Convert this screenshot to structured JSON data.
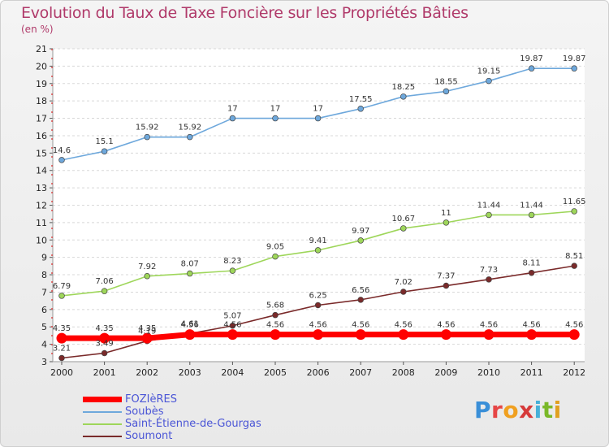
{
  "header": {
    "title": "Evolution du Taux de Taxe Foncière sur les Propriétés Bâties",
    "subtitle": "(en %)"
  },
  "logo": {
    "text": "Proxiti",
    "letter_colors": [
      "#3a8fd8",
      "#e64646",
      "#f0a020",
      "#d63a3a",
      "#46b0d8",
      "#7ab828",
      "#e0a020"
    ]
  },
  "chart_data": {
    "type": "line",
    "title": "Evolution du Taux de Taxe Foncière sur les Propriétés Bâties",
    "subtitle": "(en %)",
    "xlabel": "",
    "ylabel": "",
    "x": [
      "2000",
      "2001",
      "2002",
      "2003",
      "2004",
      "2005",
      "2006",
      "2007",
      "2008",
      "2009",
      "2010",
      "2011",
      "2012"
    ],
    "ylim": [
      3,
      21
    ],
    "yticks": [
      "3",
      "4",
      "5",
      "6",
      "7",
      "8",
      "9",
      "10",
      "11",
      "12",
      "13",
      "14",
      "15",
      "16",
      "17",
      "18",
      "19",
      "20",
      "21"
    ],
    "grid": "horizontal dashed",
    "legend_position": "bottom-left",
    "series": [
      {
        "name": "FOZIèRES",
        "color": "#ff0000",
        "values": [
          4.35,
          4.35,
          4.35,
          4.56,
          4.56,
          4.56,
          4.56,
          4.56,
          4.56,
          4.56,
          4.56,
          4.56,
          4.56
        ],
        "labels": [
          "4.35",
          "4.35",
          "4.35",
          "4.56",
          "4.56",
          "4.56",
          "4.56",
          "4.56",
          "4.56",
          "4.56",
          "4.56",
          "4.56",
          "4.56"
        ]
      },
      {
        "name": "Soubès",
        "color": "#6ea8dc",
        "values": [
          14.6,
          15.1,
          15.92,
          15.92,
          17,
          17,
          17,
          17.55,
          18.25,
          18.55,
          19.15,
          19.87,
          19.87
        ],
        "labels": [
          "14.6",
          "15.1",
          "15.92",
          "15.92",
          "17",
          "17",
          "17",
          "17.55",
          "18.25",
          "18.55",
          "19.15",
          "19.87",
          "19.87"
        ]
      },
      {
        "name": "Saint-Étienne-de-Gourgas",
        "color": "#9ed65a",
        "values": [
          6.79,
          7.06,
          7.92,
          8.07,
          8.23,
          9.05,
          9.41,
          9.97,
          10.67,
          11,
          11.44,
          11.44,
          11.65
        ],
        "labels": [
          "6.79",
          "7.06",
          "7.92",
          "8.07",
          "8.23",
          "9.05",
          "9.41",
          "9.97",
          "10.67",
          "11",
          "11.44",
          "11.44",
          "11.65"
        ]
      },
      {
        "name": "Soumont",
        "color": "#7a2a2a",
        "values": [
          3.21,
          3.49,
          4.19,
          4.61,
          5.07,
          5.68,
          6.25,
          6.56,
          7.02,
          7.37,
          7.73,
          8.11,
          8.51
        ],
        "labels": [
          "3.21",
          "3.49",
          "4.19",
          "4.61",
          "5.07",
          "5.68",
          "6.25",
          "6.56",
          "7.02",
          "7.37",
          "7.73",
          "8.11",
          "8.51"
        ]
      }
    ]
  }
}
